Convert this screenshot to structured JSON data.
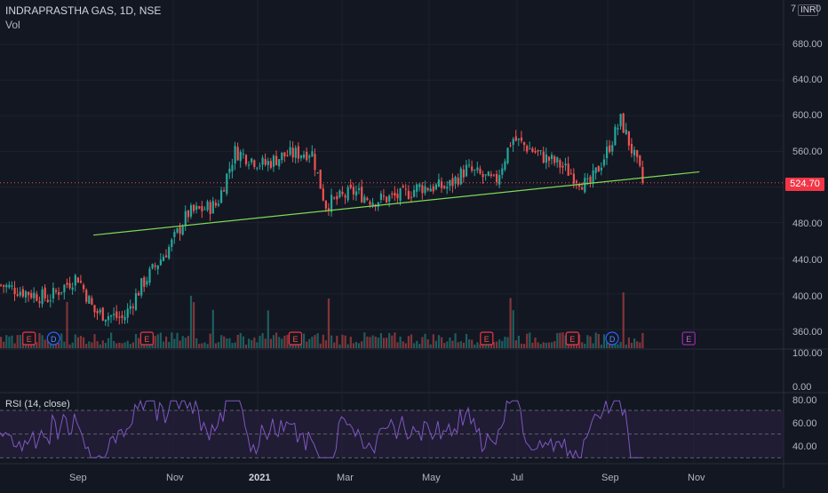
{
  "header": {
    "symbol": "INDRAPRASTHA GAS, 1D, NSE",
    "volume_label": "Vol",
    "currency": "INR",
    "corner_left": "7",
    "corner_right": "0"
  },
  "price_axis": {
    "ticks": [
      "680.00",
      "640.00",
      "600.00",
      "560.00",
      "480.00",
      "440.00",
      "400.00",
      "360.00"
    ],
    "last_price": "524.70"
  },
  "volume_axis": {
    "ticks": [
      "100.00",
      "0.00"
    ]
  },
  "rsi": {
    "title": "RSI (14, close)",
    "ticks": [
      "80.00",
      "60.00",
      "40.00"
    ]
  },
  "x_axis": {
    "labels": [
      "Sep",
      "Nov",
      "2021",
      "Mar",
      "May",
      "Jul",
      "Sep",
      "Nov"
    ]
  },
  "colors": {
    "up": "#26a69a",
    "down": "#ef5350",
    "trend": "#7ed957",
    "rsi_line": "#7e57c2",
    "rsi_band": "#2a2040",
    "bg": "#131722",
    "grid": "#1e222d"
  },
  "chart_data": {
    "type": "candlestick",
    "title": "INDRAPRASTHA GAS, 1D, NSE",
    "ylim": [
      340,
      700
    ],
    "last_price": 524.7,
    "x_labels": [
      "Sep",
      "Nov",
      "2021",
      "Mar",
      "May",
      "Jul",
      "Sep",
      "Nov"
    ],
    "price_path": [
      {
        "date": "2020-08",
        "close": 410
      },
      {
        "date": "2020-09",
        "close": 395
      },
      {
        "date": "2020-09-20",
        "close": 420
      },
      {
        "date": "2020-10",
        "close": 380
      },
      {
        "date": "2020-10-20",
        "close": 372
      },
      {
        "date": "2020-11",
        "close": 410
      },
      {
        "date": "2020-11-20",
        "close": 455
      },
      {
        "date": "2020-12",
        "close": 490
      },
      {
        "date": "2020-12-20",
        "close": 500
      },
      {
        "date": "2021-01",
        "close": 560
      },
      {
        "date": "2021-01-20",
        "close": 545
      },
      {
        "date": "2021-02",
        "close": 555
      },
      {
        "date": "2021-02-20",
        "close": 560
      },
      {
        "date": "2021-03",
        "close": 500
      },
      {
        "date": "2021-03-20",
        "close": 515
      },
      {
        "date": "2021-04",
        "close": 505
      },
      {
        "date": "2021-04-20",
        "close": 510
      },
      {
        "date": "2021-05",
        "close": 520
      },
      {
        "date": "2021-05-20",
        "close": 520
      },
      {
        "date": "2021-06",
        "close": 540
      },
      {
        "date": "2021-06-20",
        "close": 525
      },
      {
        "date": "2021-07",
        "close": 575
      },
      {
        "date": "2021-07-20",
        "close": 555
      },
      {
        "date": "2021-08",
        "close": 545
      },
      {
        "date": "2021-08-20",
        "close": 520
      },
      {
        "date": "2021-09",
        "close": 560
      },
      {
        "date": "2021-09-10",
        "close": 595
      },
      {
        "date": "2021-09-25",
        "close": 524.7
      }
    ],
    "trendline": {
      "start": {
        "date": "2020-10",
        "price": 466
      },
      "end": {
        "date": "2021-11",
        "price": 537
      }
    },
    "events": [
      {
        "label": "E",
        "type": "earnings",
        "date": "2020-08-20"
      },
      {
        "label": "D",
        "type": "dividend",
        "date": "2020-09-05"
      },
      {
        "label": "E",
        "type": "earnings",
        "date": "2020-11-05"
      },
      {
        "label": "E",
        "type": "earnings",
        "date": "2021-02-10"
      },
      {
        "label": "E",
        "type": "earnings",
        "date": "2021-06-15"
      },
      {
        "label": "E",
        "type": "earnings",
        "date": "2021-08-10"
      },
      {
        "label": "D",
        "type": "dividend",
        "date": "2021-09-05"
      },
      {
        "label": "E",
        "type": "earnings",
        "date": "2021-10-25"
      }
    ],
    "volume_range": [
      0,
      100
    ],
    "rsi": {
      "name": "RSI (14, close)",
      "upper": 70,
      "lower": 30,
      "ylim": [
        25,
        85
      ]
    }
  }
}
